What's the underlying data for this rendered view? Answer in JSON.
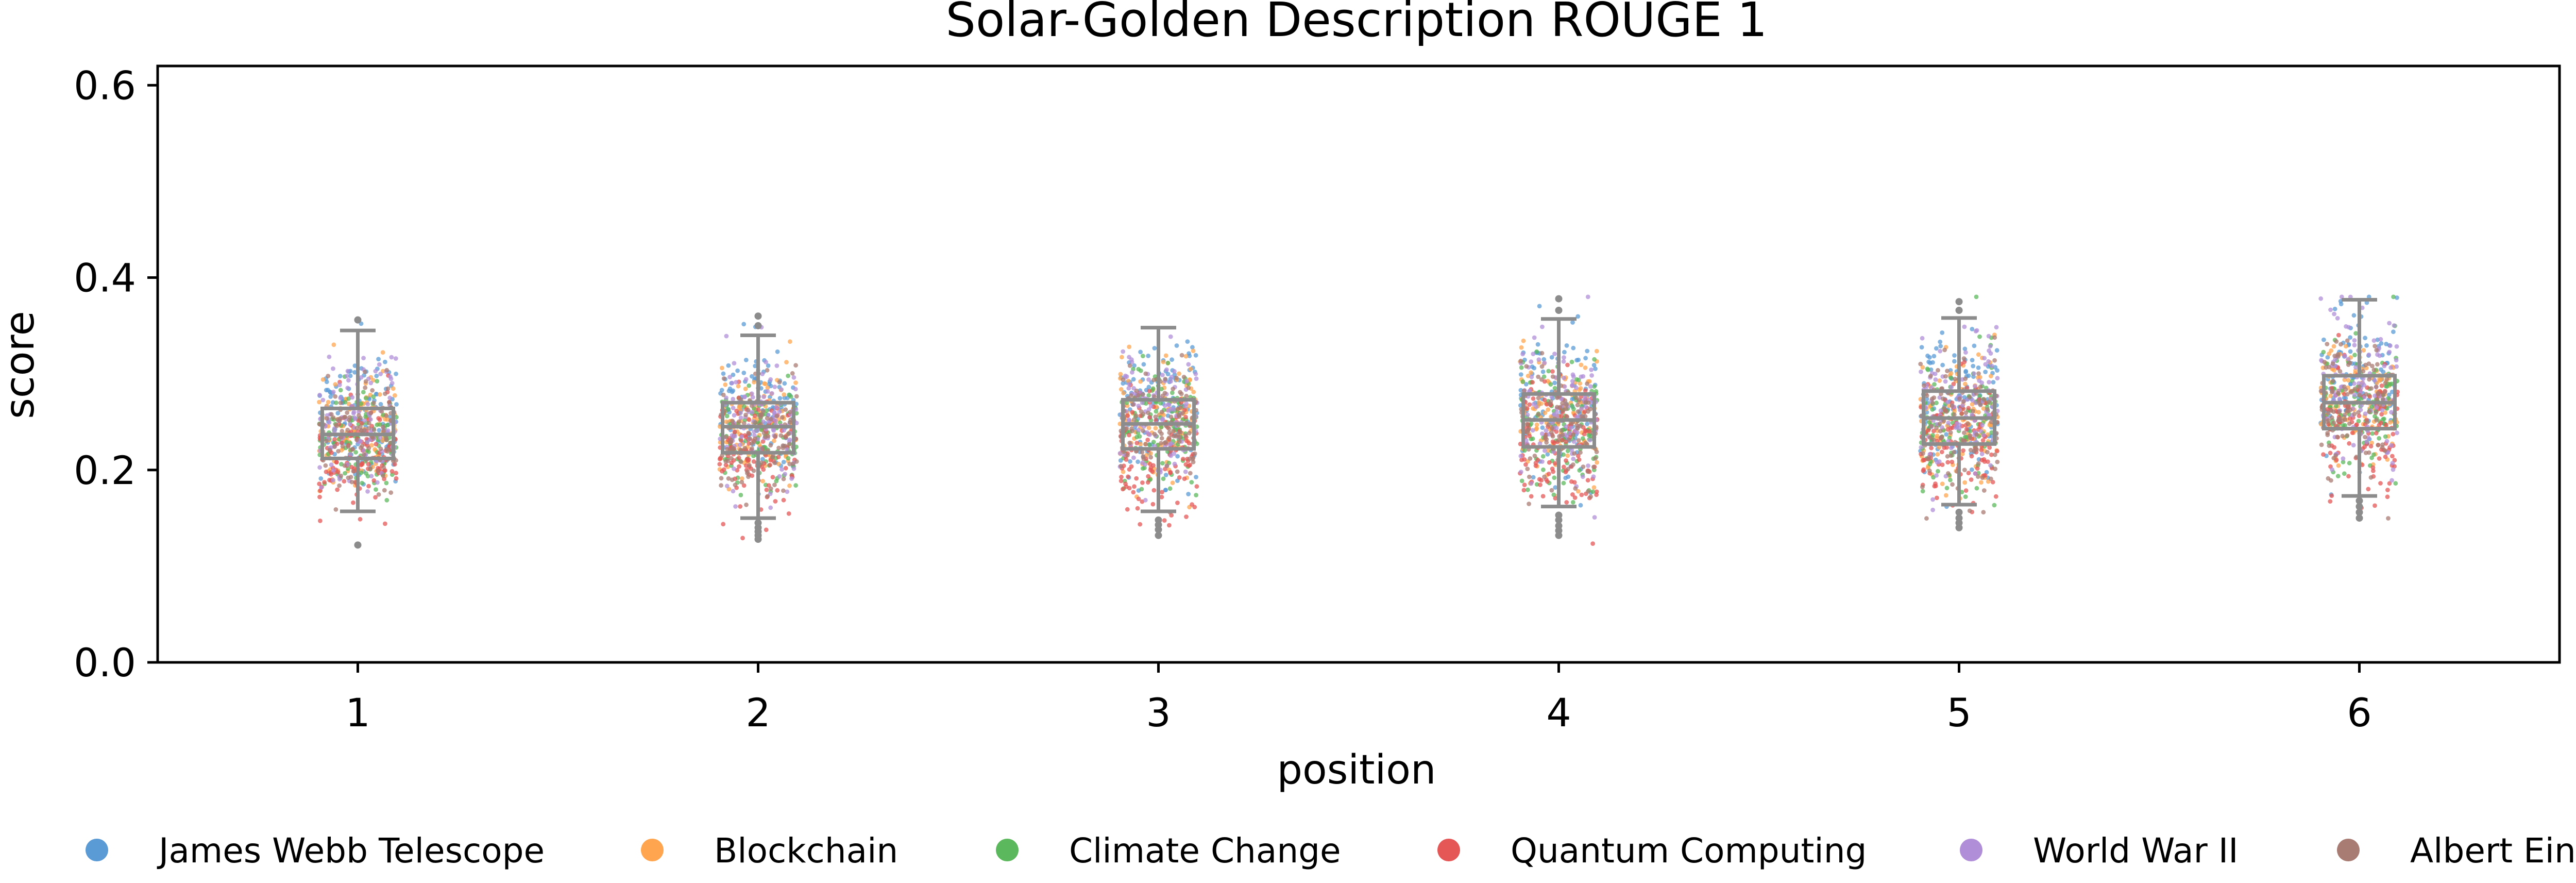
{
  "chart_data": {
    "type": "box-strip",
    "title": "Solar-Golden Description ROUGE 1",
    "xlabel": "position",
    "ylabel": "score",
    "categories": [
      "1",
      "2",
      "3",
      "4",
      "5",
      "6"
    ],
    "yticks": [
      "0.0",
      "0.2",
      "0.4",
      "0.6"
    ],
    "ylim": [
      0,
      0.62
    ],
    "grid": false,
    "legend_position": "bottom",
    "legend": [
      {
        "name": "James Webb Telescope",
        "color": "#5b9bd5"
      },
      {
        "name": "Blockchain",
        "color": "#ffa54f"
      },
      {
        "name": "Climate Change",
        "color": "#5cb85c"
      },
      {
        "name": "Quantum Computing",
        "color": "#e45756"
      },
      {
        "name": "World War II",
        "color": "#b08fd8"
      },
      {
        "name": "Albert Einstein",
        "color": "#a97c73"
      }
    ],
    "boxes": [
      {
        "position": "1",
        "q1": 0.212,
        "median": 0.237,
        "q3": 0.264,
        "whisker_low": 0.157,
        "whisker_high": 0.345,
        "outliers": [
          0.122,
          0.356
        ]
      },
      {
        "position": "2",
        "q1": 0.218,
        "median": 0.245,
        "q3": 0.27,
        "whisker_low": 0.15,
        "whisker_high": 0.34,
        "outliers": [
          0.128,
          0.132,
          0.136,
          0.14,
          0.145,
          0.35,
          0.36
        ]
      },
      {
        "position": "3",
        "q1": 0.222,
        "median": 0.248,
        "q3": 0.273,
        "whisker_low": 0.157,
        "whisker_high": 0.348,
        "outliers": [
          0.132,
          0.138,
          0.143,
          0.148
        ]
      },
      {
        "position": "4",
        "q1": 0.224,
        "median": 0.252,
        "q3": 0.279,
        "whisker_low": 0.162,
        "whisker_high": 0.357,
        "outliers": [
          0.132,
          0.137,
          0.142,
          0.148,
          0.153,
          0.366,
          0.378
        ]
      },
      {
        "position": "5",
        "q1": 0.227,
        "median": 0.254,
        "q3": 0.282,
        "whisker_low": 0.164,
        "whisker_high": 0.358,
        "outliers": [
          0.14,
          0.145,
          0.15,
          0.156,
          0.366,
          0.375
        ]
      },
      {
        "position": "6",
        "q1": 0.243,
        "median": 0.27,
        "q3": 0.298,
        "whisker_low": 0.173,
        "whisker_high": 0.377,
        "outliers": [
          0.15,
          0.156,
          0.162,
          0.168
        ]
      }
    ],
    "series": [
      {
        "name": "James Webb Telescope",
        "mean_by_position": [
          0.255,
          0.265,
          0.268,
          0.27,
          0.274,
          0.288
        ],
        "sd_by_position": [
          0.035,
          0.035,
          0.036,
          0.038,
          0.039,
          0.04
        ],
        "points_per_position": 110
      },
      {
        "name": "Blockchain",
        "mean_by_position": [
          0.24,
          0.246,
          0.249,
          0.257,
          0.257,
          0.272
        ],
        "sd_by_position": [
          0.03,
          0.03,
          0.032,
          0.034,
          0.034,
          0.034
        ],
        "points_per_position": 110
      },
      {
        "name": "Climate Change",
        "mean_by_position": [
          0.235,
          0.238,
          0.244,
          0.247,
          0.248,
          0.265
        ],
        "sd_by_position": [
          0.03,
          0.03,
          0.031,
          0.033,
          0.034,
          0.034
        ],
        "points_per_position": 110
      },
      {
        "name": "Quantum Computing",
        "mean_by_position": [
          0.212,
          0.214,
          0.218,
          0.224,
          0.226,
          0.24
        ],
        "sd_by_position": [
          0.03,
          0.032,
          0.033,
          0.034,
          0.035,
          0.036
        ],
        "points_per_position": 110
      },
      {
        "name": "World War II",
        "mean_by_position": [
          0.248,
          0.256,
          0.262,
          0.262,
          0.266,
          0.285
        ],
        "sd_by_position": [
          0.035,
          0.035,
          0.036,
          0.037,
          0.038,
          0.039
        ],
        "points_per_position": 110
      },
      {
        "name": "Albert Einstein",
        "mean_by_position": [
          0.235,
          0.239,
          0.245,
          0.25,
          0.25,
          0.266
        ],
        "sd_by_position": [
          0.03,
          0.03,
          0.031,
          0.033,
          0.033,
          0.034
        ],
        "points_per_position": 110
      }
    ]
  }
}
